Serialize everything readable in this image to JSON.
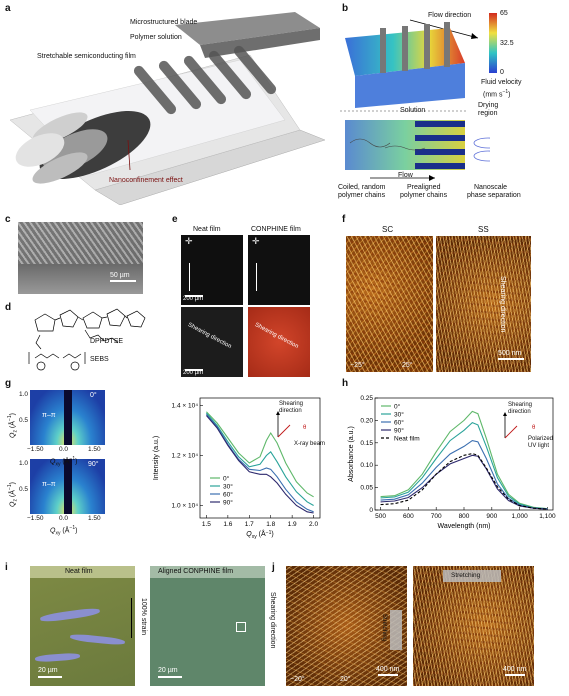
{
  "panel_a": {
    "letter": "a",
    "labels": {
      "blade": "Microstructured blade",
      "solution": "Polymer solution",
      "film": "Stretchable semiconducting film",
      "effect": "Nanoconfinement effect"
    }
  },
  "panel_b": {
    "letter": "b",
    "flow_direction": "Flow direction",
    "colorbar_ticks": [
      "65",
      "32.5",
      "0"
    ],
    "colorbar_label_1": "Fluid velocity",
    "colorbar_label_2": "(mm s",
    "colorbar_label_sup": "−1",
    "colorbar_label_3": ")",
    "solution": "Solution",
    "drying_1": "Drying",
    "drying_2": "region",
    "flow": "Flow",
    "chains_1a": "Coiled, random",
    "chains_1b": "polymer chains",
    "chains_2a": "Prealigned",
    "chains_2b": "polymer chains",
    "chains_3a": "Nanoscale",
    "chains_3b": "phase separation"
  },
  "panel_c": {
    "letter": "c",
    "scale": "50 µm"
  },
  "panel_d": {
    "letter": "d",
    "mol1": "DPPDTSE",
    "mol2": "SEBS"
  },
  "panel_e": {
    "letter": "e",
    "col1": "Neat film",
    "col2": "CONPHINE film",
    "scale": "200 µm",
    "shear1": "Shearing direction",
    "shear2": "Shearing direction"
  },
  "panel_f": {
    "letter": "f",
    "col1": "SC",
    "col2": "SS",
    "shear": "Shearing direction",
    "angle1": "−25°",
    "angle2": "25°",
    "scale": "500 nm"
  },
  "panel_g": {
    "letter": "g",
    "angle_top": "0°",
    "angle_bot": "90°",
    "pipi": "π–π",
    "qz": "Q",
    "qz_sub": "z",
    "qz_unit": " (Å",
    "qz_unit_sup": "−1",
    "qz_unit_end": ")",
    "qxy": "Q",
    "qxy_sub": "xy",
    "qxy_unit": " (Å",
    "qxy_unit_sup": "−1",
    "qxy_unit_end": ")",
    "y_ticks": [
      "1.0",
      "0.5"
    ],
    "x_ticks": [
      "−1.50",
      "0.0",
      "1.50"
    ],
    "inset_shear_1": "Shearing",
    "inset_shear_2": "direction",
    "inset_theta": "θ",
    "inset_xray": "X-ray beam"
  },
  "panel_h": {
    "letter": "h",
    "inset_shear_1": "Shearing",
    "inset_shear_2": "direction",
    "inset_theta": "θ",
    "inset_pol_1": "Polarized",
    "inset_pol_2": "UV light"
  },
  "panel_i": {
    "letter": "i",
    "col1": "Neat film",
    "col2": "Aligned CONPHINE film",
    "strain": "100% strain",
    "scale": "20 µm",
    "shear": "Shearing direction"
  },
  "panel_j": {
    "letter": "j",
    "stretch1": "Stretching",
    "stretch2": "Stretching",
    "angle1": "−20°",
    "angle2": "20°",
    "scale": "400 nm"
  },
  "chart_data": [
    {
      "type": "line",
      "panel": "g-right",
      "xlabel": "Q",
      "xlabel_sub": "xy",
      "xlabel_unit": " (Å",
      "xlabel_unit_sup": "−1",
      "xlabel_unit_end": ")",
      "ylabel": "Intensity (a.u.)",
      "xlim": [
        1.47,
        2.03
      ],
      "ylim": [
        9500,
        14300
      ],
      "x_ticks": [
        1.5,
        1.6,
        1.7,
        1.8,
        1.9,
        2.0
      ],
      "x_tick_labels": [
        "1.5",
        "1.6",
        "1.7",
        "1.8",
        "1.9",
        "2.0"
      ],
      "y_ticks": [
        10000,
        12000,
        14000
      ],
      "y_tick_labels": [
        "1.0 × 10⁴",
        "1.2 × 10⁴",
        "1.4 × 10⁴"
      ],
      "x": [
        1.5,
        1.55,
        1.6,
        1.65,
        1.7,
        1.75,
        1.78,
        1.8,
        1.83,
        1.87,
        1.92,
        1.97,
        2.0
      ],
      "series": [
        {
          "name": "0°",
          "color": "#5fb86a",
          "values": [
            13750,
            13300,
            12700,
            12100,
            11700,
            11950,
            12600,
            12900,
            12500,
            11700,
            10950,
            10500,
            10350
          ]
        },
        {
          "name": "30°",
          "color": "#2aa39a",
          "values": [
            13700,
            13200,
            12550,
            11950,
            11550,
            11650,
            12000,
            12150,
            11750,
            11150,
            10550,
            10150,
            10000
          ]
        },
        {
          "name": "60°",
          "color": "#3b6fb0",
          "values": [
            13650,
            13150,
            12450,
            11850,
            11450,
            11400,
            11500,
            11450,
            11150,
            10650,
            10150,
            9850,
            9750
          ]
        },
        {
          "name": "90°",
          "color": "#2e2a6e",
          "values": [
            13600,
            13100,
            12400,
            11800,
            11350,
            11250,
            11250,
            11150,
            10900,
            10450,
            10000,
            9750,
            9700
          ]
        }
      ],
      "legend": "bottom-left"
    },
    {
      "type": "line",
      "panel": "h",
      "xlabel": "Wavelength (nm)",
      "ylabel": "Absorbance (a.u.)",
      "xlim": [
        480,
        1120
      ],
      "ylim": [
        0,
        0.25
      ],
      "x_ticks": [
        500,
        600,
        700,
        800,
        900,
        1000,
        1100
      ],
      "x_tick_labels": [
        "500",
        "600",
        "700",
        "800",
        "900",
        "1,000",
        "1,100"
      ],
      "y_ticks": [
        0,
        0.05,
        0.1,
        0.15,
        0.2,
        0.25
      ],
      "y_tick_labels": [
        "0",
        "0.05",
        "0.10",
        "0.15",
        "0.20",
        "0.25"
      ],
      "x": [
        500,
        550,
        600,
        650,
        700,
        750,
        800,
        830,
        850,
        880,
        920,
        960,
        1000,
        1050,
        1100
      ],
      "series": [
        {
          "name": "0°",
          "color": "#5fb86a",
          "values": [
            0.03,
            0.032,
            0.045,
            0.08,
            0.13,
            0.175,
            0.2,
            0.22,
            0.215,
            0.16,
            0.08,
            0.035,
            0.015,
            0.006,
            0.003
          ]
        },
        {
          "name": "30°",
          "color": "#2aa39a",
          "values": [
            0.027,
            0.029,
            0.04,
            0.072,
            0.115,
            0.155,
            0.178,
            0.195,
            0.19,
            0.142,
            0.072,
            0.031,
            0.013,
            0.005,
            0.003
          ]
        },
        {
          "name": "60°",
          "color": "#3b6fb0",
          "values": [
            0.022,
            0.024,
            0.034,
            0.06,
            0.095,
            0.125,
            0.142,
            0.155,
            0.152,
            0.115,
            0.058,
            0.026,
            0.011,
            0.004,
            0.002
          ]
        },
        {
          "name": "90°",
          "color": "#2e2a6e",
          "values": [
            0.018,
            0.02,
            0.028,
            0.05,
            0.08,
            0.103,
            0.115,
            0.122,
            0.12,
            0.092,
            0.047,
            0.021,
            0.009,
            0.004,
            0.002
          ]
        },
        {
          "name": "Neat film",
          "color": "#000000",
          "dashed": true,
          "values": [
            0.012,
            0.014,
            0.022,
            0.045,
            0.08,
            0.108,
            0.122,
            0.126,
            0.122,
            0.094,
            0.052,
            0.024,
            0.01,
            0.004,
            0.002
          ]
        }
      ],
      "legend": "top-left"
    }
  ]
}
